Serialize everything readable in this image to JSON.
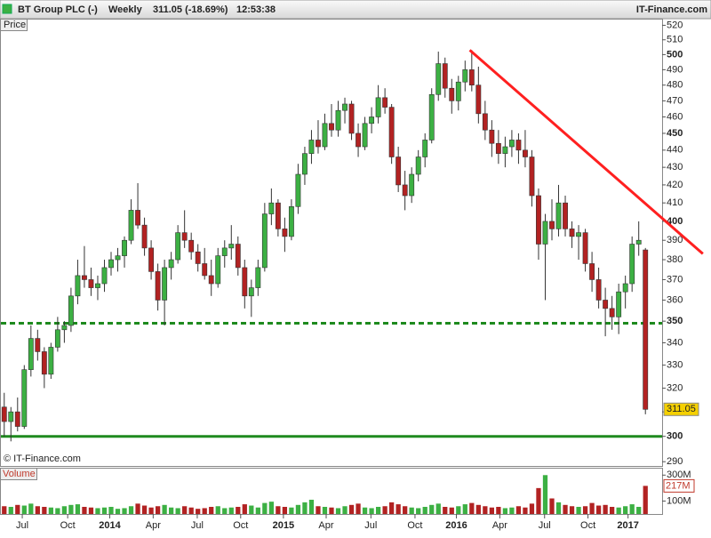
{
  "header": {
    "title": "BT Group PLC (-)",
    "interval": "Weekly",
    "quote": "311.05 (-18.69%)",
    "time": "12:53:38",
    "brand": "IT-Finance.com"
  },
  "chart_data": {
    "type": "candlestick",
    "log": true,
    "panel_label": "Price",
    "watermark": "© IT-Finance.com",
    "up_color": "#3cb043",
    "down_color": "#b22222",
    "ylim": [
      288,
      524
    ],
    "yticks": [
      290,
      300,
      310,
      320,
      330,
      340,
      350,
      360,
      370,
      380,
      390,
      400,
      410,
      420,
      430,
      440,
      450,
      460,
      470,
      480,
      490,
      500,
      510,
      520
    ],
    "xlim": [
      0,
      99
    ],
    "xticks": [
      {
        "value": 3.2,
        "label": "Jul"
      },
      {
        "value": 10.0,
        "label": "Oct"
      },
      {
        "value": 16.3,
        "label": "2014"
      },
      {
        "value": 22.8,
        "label": "Apr"
      },
      {
        "value": 29.4,
        "label": "Jul"
      },
      {
        "value": 35.9,
        "label": "Oct"
      },
      {
        "value": 42.3,
        "label": "2015"
      },
      {
        "value": 48.7,
        "label": "Apr"
      },
      {
        "value": 55.4,
        "label": "Jul"
      },
      {
        "value": 62.0,
        "label": "Oct"
      },
      {
        "value": 68.2,
        "label": "2016"
      },
      {
        "value": 74.7,
        "label": "Apr"
      },
      {
        "value": 81.4,
        "label": "Jul"
      },
      {
        "value": 87.9,
        "label": "Oct"
      },
      {
        "value": 93.9,
        "label": "2017"
      }
    ],
    "open": [
      312,
      306,
      310,
      304,
      328,
      342,
      336,
      326,
      338,
      346,
      348,
      362,
      372,
      370,
      366,
      368,
      376,
      380,
      382,
      390,
      406,
      398,
      386,
      374,
      360,
      376,
      380,
      394,
      390,
      384,
      378,
      372,
      368,
      382,
      386,
      388,
      376,
      362,
      366,
      376,
      404,
      410,
      396,
      392,
      408,
      426,
      438,
      446,
      442,
      456,
      452,
      464,
      468,
      450,
      442,
      456,
      460,
      472,
      466,
      436,
      420,
      414,
      426,
      436,
      446,
      474,
      494,
      478,
      470,
      482,
      490,
      480,
      462,
      452,
      444,
      438,
      442,
      446,
      440,
      436,
      414,
      388,
      400,
      396,
      410,
      396,
      392,
      394,
      378,
      370,
      360,
      356,
      352,
      364,
      368,
      388,
      385
    ],
    "high": [
      318,
      312,
      316,
      330,
      348,
      346,
      338,
      340,
      352,
      350,
      366,
      380,
      387,
      376,
      372,
      380,
      384,
      386,
      392,
      412,
      421,
      402,
      390,
      378,
      380,
      384,
      398,
      406,
      394,
      388,
      386,
      380,
      386,
      390,
      398,
      392,
      380,
      370,
      380,
      410,
      418,
      412,
      402,
      412,
      432,
      442,
      452,
      458,
      462,
      468,
      470,
      472,
      470,
      456,
      460,
      466,
      480,
      478,
      468,
      442,
      428,
      430,
      440,
      450,
      478,
      502,
      498,
      484,
      486,
      496,
      503,
      492,
      470,
      458,
      452,
      448,
      452,
      450,
      452,
      440,
      418,
      404,
      412,
      420,
      414,
      400,
      398,
      396,
      384,
      376,
      366,
      362,
      368,
      372,
      392,
      400,
      386
    ],
    "low": [
      300,
      298,
      302,
      303,
      325,
      332,
      320,
      324,
      336,
      340,
      345,
      358,
      366,
      362,
      360,
      364,
      372,
      374,
      376,
      388,
      396,
      382,
      370,
      355,
      348,
      370,
      378,
      386,
      380,
      374,
      370,
      362,
      366,
      376,
      380,
      372,
      356,
      352,
      362,
      374,
      398,
      392,
      384,
      390,
      404,
      420,
      432,
      438,
      440,
      448,
      448,
      456,
      446,
      436,
      440,
      450,
      456,
      462,
      432,
      416,
      406,
      410,
      422,
      430,
      444,
      470,
      472,
      462,
      464,
      476,
      476,
      456,
      446,
      436,
      432,
      430,
      436,
      432,
      430,
      408,
      380,
      360,
      390,
      392,
      392,
      386,
      380,
      374,
      364,
      356,
      343,
      346,
      344,
      356,
      364,
      382,
      309
    ],
    "close": [
      306,
      310,
      304,
      328,
      342,
      336,
      326,
      338,
      346,
      348,
      362,
      372,
      370,
      366,
      368,
      376,
      380,
      382,
      390,
      406,
      398,
      386,
      374,
      360,
      376,
      380,
      394,
      390,
      384,
      378,
      372,
      368,
      382,
      386,
      388,
      376,
      362,
      366,
      376,
      404,
      410,
      396,
      392,
      408,
      426,
      438,
      446,
      442,
      456,
      452,
      464,
      468,
      450,
      442,
      456,
      460,
      472,
      466,
      436,
      420,
      414,
      426,
      436,
      446,
      474,
      494,
      478,
      470,
      482,
      490,
      480,
      462,
      452,
      444,
      438,
      442,
      446,
      440,
      436,
      414,
      388,
      400,
      396,
      410,
      396,
      392,
      394,
      378,
      370,
      360,
      356,
      352,
      364,
      368,
      388,
      390,
      311.05
    ],
    "hlines": [
      {
        "value": 349,
        "color": "#1e8a1e",
        "dashed": true
      },
      {
        "value": 300,
        "color": "#1e8a1e",
        "dashed": false
      }
    ],
    "trendline": {
      "color": "#ff2020",
      "start": [
        70.2,
        503
      ],
      "end": [
        105.1,
        383
      ]
    },
    "volume": {
      "panel_label": "Volume",
      "ylim": [
        0,
        350
      ],
      "yticks": [
        {
          "value": 300,
          "label": "300M"
        },
        {
          "value": 100,
          "label": "100M"
        }
      ],
      "values": [
        60,
        55,
        70,
        65,
        80,
        60,
        55,
        50,
        45,
        60,
        70,
        75,
        55,
        50,
        45,
        50,
        55,
        40,
        45,
        60,
        80,
        65,
        50,
        60,
        70,
        50,
        45,
        60,
        50,
        40,
        45,
        55,
        60,
        45,
        50,
        55,
        75,
        65,
        50,
        85,
        95,
        60,
        55,
        50,
        70,
        90,
        110,
        60,
        55,
        50,
        45,
        60,
        70,
        80,
        50,
        45,
        55,
        60,
        90,
        75,
        60,
        50,
        45,
        55,
        70,
        80,
        55,
        50,
        60,
        75,
        85,
        70,
        60,
        50,
        55,
        45,
        50,
        60,
        50,
        80,
        200,
        300,
        120,
        90,
        70,
        60,
        55,
        60,
        85,
        65,
        70,
        55,
        50,
        60,
        75,
        55,
        217
      ],
      "last_label": "217M"
    }
  }
}
